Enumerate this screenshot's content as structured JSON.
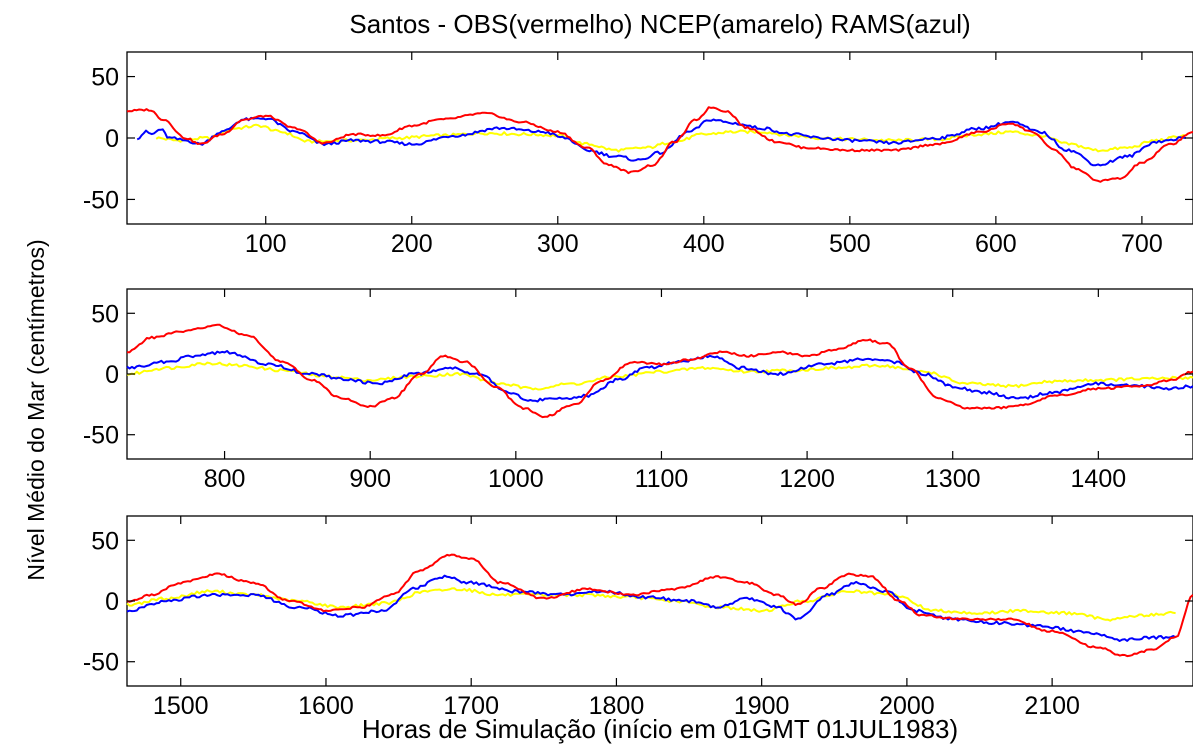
{
  "figure": {
    "title": "Santos - OBS(vermelho) NCEP(amarelo) RAMS(azul)",
    "ylabel": "Nível Médio do Mar (centímetros)",
    "xlabel": "Horas de Simulação (início em 01GMT 01JUL1983)"
  },
  "colors": {
    "OBS": "#ff0000",
    "NCEP": "#ffff00",
    "RAMS": "#0000ff"
  },
  "chart_data": [
    {
      "type": "line",
      "xlim": [
        5,
        735
      ],
      "ylim": [
        -70,
        70
      ],
      "xticks": [
        100,
        200,
        300,
        400,
        500,
        600,
        700
      ],
      "yticks": [
        50,
        0,
        -50
      ],
      "series": [
        {
          "name": "OBS",
          "color": "#ff0000",
          "x": [
            5,
            20,
            30,
            45,
            55,
            70,
            85,
            100,
            120,
            140,
            160,
            180,
            200,
            220,
            250,
            275,
            300,
            320,
            335,
            350,
            365,
            380,
            395,
            405,
            415,
            430,
            450,
            470,
            500,
            530,
            560,
            590,
            610,
            625,
            640,
            655,
            670,
            685,
            700,
            720,
            735
          ],
          "y": [
            22,
            23,
            15,
            0,
            -5,
            3,
            15,
            18,
            8,
            -4,
            3,
            2,
            10,
            15,
            20,
            13,
            5,
            -8,
            -22,
            -28,
            -22,
            -3,
            15,
            25,
            22,
            8,
            -3,
            -8,
            -10,
            -10,
            -5,
            5,
            12,
            5,
            -10,
            -25,
            -35,
            -33,
            -20,
            -5,
            5
          ]
        },
        {
          "name": "NCEP",
          "color": "#ffff00",
          "x": [
            25,
            40,
            60,
            80,
            95,
            110,
            130,
            160,
            190,
            220,
            250,
            280,
            300,
            320,
            340,
            360,
            380,
            400,
            420,
            440,
            460,
            480,
            500,
            530,
            560,
            590,
            610,
            630,
            650,
            670,
            690,
            710,
            730
          ],
          "y": [
            0,
            -2,
            0,
            8,
            10,
            5,
            -3,
            -2,
            0,
            2,
            4,
            3,
            2,
            -5,
            -10,
            -8,
            -3,
            3,
            5,
            5,
            2,
            0,
            -1,
            -2,
            -1,
            3,
            5,
            2,
            -5,
            -10,
            -8,
            -2,
            2
          ]
        },
        {
          "name": "RAMS",
          "color": "#0000ff",
          "x": [
            12,
            18,
            22,
            28,
            34,
            45,
            55,
            70,
            85,
            100,
            120,
            140,
            160,
            180,
            200,
            230,
            260,
            290,
            305,
            320,
            340,
            355,
            370,
            390,
            405,
            420,
            440,
            460,
            480,
            500,
            530,
            560,
            590,
            610,
            630,
            650,
            670,
            690,
            710,
            730
          ],
          "y": [
            0,
            5,
            3,
            7,
            0,
            -2,
            -5,
            5,
            15,
            16,
            5,
            -5,
            -2,
            -3,
            -5,
            2,
            8,
            5,
            0,
            -10,
            -15,
            -18,
            -12,
            5,
            15,
            12,
            8,
            3,
            0,
            -2,
            -4,
            0,
            8,
            13,
            5,
            -10,
            -22,
            -15,
            -3,
            0
          ]
        }
      ]
    },
    {
      "type": "line",
      "xlim": [
        733,
        1465
      ],
      "ylim": [
        -70,
        70
      ],
      "xticks": [
        800,
        900,
        1000,
        1100,
        1200,
        1300,
        1400
      ],
      "yticks": [
        50,
        0,
        -50
      ],
      "series": [
        {
          "name": "OBS",
          "color": "#ff0000",
          "x": [
            733,
            750,
            770,
            795,
            815,
            840,
            860,
            880,
            900,
            915,
            935,
            950,
            965,
            985,
            1005,
            1020,
            1040,
            1060,
            1080,
            1100,
            1120,
            1140,
            1160,
            1180,
            1200,
            1220,
            1240,
            1255,
            1270,
            1290,
            1310,
            1330,
            1350,
            1370,
            1400,
            1430,
            1450,
            1465
          ],
          "y": [
            18,
            30,
            35,
            40,
            32,
            10,
            -5,
            -20,
            -27,
            -20,
            0,
            15,
            10,
            -10,
            -28,
            -35,
            -25,
            -5,
            10,
            8,
            12,
            18,
            15,
            18,
            15,
            20,
            28,
            25,
            5,
            -20,
            -28,
            -28,
            -25,
            -18,
            -12,
            -10,
            -5,
            2
          ]
        },
        {
          "name": "NCEP",
          "color": "#ffff00",
          "x": [
            733,
            760,
            790,
            810,
            840,
            870,
            900,
            930,
            960,
            990,
            1010,
            1040,
            1070,
            1100,
            1130,
            1160,
            1190,
            1220,
            1250,
            1280,
            1310,
            1340,
            1370,
            1400,
            1430,
            1465
          ],
          "y": [
            0,
            5,
            9,
            7,
            3,
            -2,
            -5,
            -2,
            0,
            -8,
            -12,
            -8,
            -2,
            2,
            5,
            2,
            3,
            5,
            7,
            2,
            -8,
            -10,
            -6,
            -5,
            -4,
            -3
          ]
        },
        {
          "name": "RAMS",
          "color": "#0000ff",
          "x": [
            733,
            760,
            780,
            800,
            830,
            860,
            885,
            905,
            930,
            955,
            975,
            995,
            1010,
            1030,
            1050,
            1070,
            1090,
            1110,
            1135,
            1155,
            1180,
            1210,
            1240,
            1260,
            1280,
            1300,
            1320,
            1345,
            1370,
            1400,
            1430,
            1450,
            1465
          ],
          "y": [
            5,
            10,
            15,
            18,
            8,
            0,
            -5,
            -8,
            0,
            5,
            0,
            -15,
            -22,
            -20,
            -18,
            -5,
            5,
            10,
            15,
            5,
            0,
            8,
            12,
            10,
            0,
            -10,
            -15,
            -20,
            -15,
            -8,
            -10,
            -12,
            -10
          ]
        }
      ]
    },
    {
      "type": "line",
      "xlim": [
        1463,
        2197
      ],
      "ylim": [
        -70,
        70
      ],
      "xticks": [
        1500,
        1600,
        1700,
        1800,
        1900,
        2000,
        2100
      ],
      "yticks": [
        50,
        0,
        -50
      ],
      "series": [
        {
          "name": "OBS",
          "color": "#ff0000",
          "x": [
            1463,
            1480,
            1500,
            1525,
            1550,
            1575,
            1600,
            1625,
            1645,
            1665,
            1685,
            1700,
            1720,
            1750,
            1780,
            1810,
            1840,
            1870,
            1890,
            1910,
            1925,
            1940,
            1960,
            1975,
            1995,
            2010,
            2040,
            2070,
            2100,
            2130,
            2150,
            2170,
            2185,
            2197
          ],
          "y": [
            0,
            5,
            15,
            22,
            15,
            0,
            -8,
            -5,
            5,
            25,
            38,
            35,
            15,
            2,
            10,
            5,
            10,
            20,
            15,
            5,
            -3,
            10,
            22,
            20,
            0,
            -12,
            -15,
            -15,
            -25,
            -38,
            -45,
            -40,
            -30,
            5
          ]
        },
        {
          "name": "NCEP",
          "color": "#ffff00",
          "x": [
            1463,
            1490,
            1520,
            1550,
            1580,
            1610,
            1640,
            1670,
            1690,
            1720,
            1750,
            1780,
            1810,
            1840,
            1870,
            1900,
            1930,
            1960,
            1990,
            2020,
            2050,
            2080,
            2110,
            2140,
            2160,
            2185
          ],
          "y": [
            -3,
            2,
            8,
            5,
            0,
            -5,
            -2,
            8,
            10,
            5,
            5,
            5,
            3,
            0,
            -5,
            -8,
            0,
            8,
            5,
            -8,
            -10,
            -8,
            -10,
            -15,
            -12,
            -10
          ]
        },
        {
          "name": "RAMS",
          "color": "#0000ff",
          "x": [
            1463,
            1490,
            1520,
            1550,
            1580,
            1610,
            1640,
            1660,
            1680,
            1700,
            1730,
            1760,
            1790,
            1820,
            1850,
            1870,
            1890,
            1910,
            1925,
            1945,
            1965,
            1985,
            2005,
            2030,
            2060,
            2090,
            2120,
            2150,
            2170,
            2185
          ],
          "y": [
            -8,
            0,
            5,
            5,
            -5,
            -12,
            -8,
            10,
            20,
            15,
            8,
            5,
            8,
            3,
            0,
            -5,
            2,
            -5,
            -15,
            5,
            15,
            8,
            -8,
            -15,
            -18,
            -20,
            -25,
            -32,
            -30,
            -30
          ]
        }
      ]
    }
  ]
}
